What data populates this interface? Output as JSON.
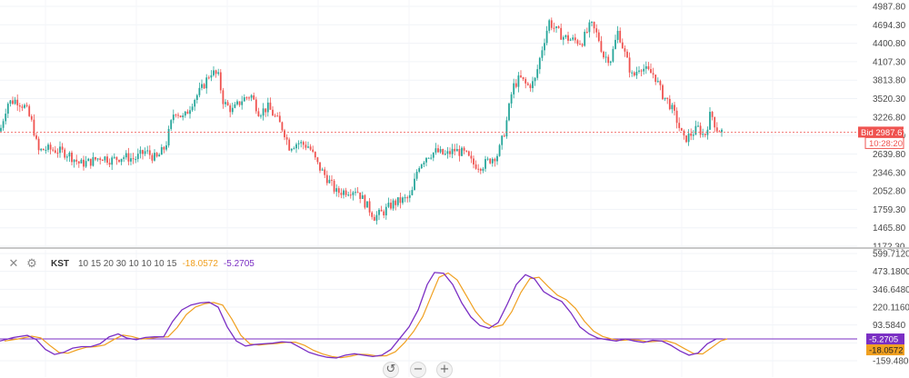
{
  "chart_data": [
    {
      "type": "candlestick",
      "title": "",
      "ylim": [
        1172.3,
        4987.8
      ],
      "yticks": [
        "4987.80",
        "4694.30",
        "4400.80",
        "4107.30",
        "3813.80",
        "3520.30",
        "3226.80",
        "2933.30",
        "2639.80",
        "2346.30",
        "2052.80",
        "1759.30",
        "1465.80",
        "1172.30"
      ],
      "colors": {
        "up": "#26a69a",
        "down": "#ef5350"
      },
      "bid": {
        "label": "Bid",
        "value": "2987.67",
        "countdown": "10:28:20",
        "color": "#ef5350"
      },
      "close_path": [
        [
          0,
          3000
        ],
        [
          8,
          3450
        ],
        [
          18,
          3500
        ],
        [
          28,
          3380
        ],
        [
          36,
          3100
        ],
        [
          42,
          2680
        ],
        [
          50,
          2720
        ],
        [
          62,
          2700
        ],
        [
          75,
          2640
        ],
        [
          88,
          2480
        ],
        [
          100,
          2520
        ],
        [
          112,
          2600
        ],
        [
          122,
          2540
        ],
        [
          135,
          2600
        ],
        [
          148,
          2560
        ],
        [
          160,
          2680
        ],
        [
          172,
          2560
        ],
        [
          182,
          2760
        ],
        [
          192,
          3350
        ],
        [
          202,
          3200
        ],
        [
          212,
          3480
        ],
        [
          222,
          3680
        ],
        [
          232,
          3950
        ],
        [
          240,
          3880
        ],
        [
          246,
          3450
        ],
        [
          256,
          3330
        ],
        [
          266,
          3500
        ],
        [
          276,
          3580
        ],
        [
          285,
          3300
        ],
        [
          295,
          3380
        ],
        [
          305,
          3180
        ],
        [
          312,
          3020
        ],
        [
          318,
          2760
        ],
        [
          328,
          2820
        ],
        [
          340,
          2760
        ],
        [
          350,
          2450
        ],
        [
          360,
          2250
        ],
        [
          370,
          2030
        ],
        [
          380,
          2050
        ],
        [
          392,
          2080
        ],
        [
          402,
          1850
        ],
        [
          412,
          1640
        ],
        [
          422,
          1720
        ],
        [
          432,
          1850
        ],
        [
          442,
          1900
        ],
        [
          452,
          1950
        ],
        [
          460,
          2450
        ],
        [
          470,
          2620
        ],
        [
          480,
          2680
        ],
        [
          490,
          2620
        ],
        [
          500,
          2700
        ],
        [
          512,
          2640
        ],
        [
          520,
          2480
        ],
        [
          530,
          2450
        ],
        [
          540,
          2560
        ],
        [
          548,
          2640
        ],
        [
          556,
          3050
        ],
        [
          564,
          3700
        ],
        [
          572,
          3850
        ],
        [
          580,
          3720
        ],
        [
          588,
          3780
        ],
        [
          596,
          4300
        ],
        [
          604,
          4750
        ],
        [
          612,
          4600
        ],
        [
          620,
          4500
        ],
        [
          630,
          4450
        ],
        [
          640,
          4420
        ],
        [
          650,
          4700
        ],
        [
          658,
          4500
        ],
        [
          664,
          4200
        ],
        [
          672,
          4150
        ],
        [
          680,
          4600
        ],
        [
          688,
          4200
        ],
        [
          696,
          3850
        ],
        [
          704,
          4050
        ],
        [
          712,
          3950
        ],
        [
          720,
          3900
        ],
        [
          728,
          3600
        ],
        [
          736,
          3450
        ],
        [
          744,
          3200
        ],
        [
          752,
          2860
        ],
        [
          760,
          2950
        ],
        [
          768,
          3050
        ],
        [
          775,
          2920
        ],
        [
          782,
          3300
        ],
        [
          788,
          3050
        ],
        [
          795,
          2987.67
        ]
      ]
    },
    {
      "type": "line",
      "name": "KST",
      "params": "10 15 20 30 10 10 10 15",
      "ylim": [
        -159.48,
        599.712
      ],
      "yticks": [
        "599.7120",
        "473.1800",
        "346.6480",
        "220.1160",
        "93.5840",
        "-33.0000",
        "-159.4800"
      ],
      "series": [
        {
          "name": "KST",
          "color": "#7b2fc4",
          "last": "-5.2705"
        },
        {
          "name": "Signal",
          "color": "#f0a020",
          "last": "-18.0572"
        }
      ],
      "zero_line_value": -5.2705,
      "kst_points": [
        [
          0,
          -20
        ],
        [
          15,
          5
        ],
        [
          30,
          20
        ],
        [
          40,
          -10
        ],
        [
          50,
          -80
        ],
        [
          60,
          -115
        ],
        [
          70,
          -100
        ],
        [
          80,
          -70
        ],
        [
          90,
          -60
        ],
        [
          100,
          -60
        ],
        [
          110,
          -40
        ],
        [
          120,
          10
        ],
        [
          130,
          30
        ],
        [
          140,
          0
        ],
        [
          150,
          -10
        ],
        [
          160,
          5
        ],
        [
          170,
          10
        ],
        [
          180,
          10
        ],
        [
          190,
          120
        ],
        [
          200,
          200
        ],
        [
          210,
          235
        ],
        [
          220,
          250
        ],
        [
          230,
          255
        ],
        [
          240,
          220
        ],
        [
          250,
          80
        ],
        [
          260,
          -20
        ],
        [
          270,
          -55
        ],
        [
          280,
          -45
        ],
        [
          290,
          -40
        ],
        [
          300,
          -35
        ],
        [
          310,
          -25
        ],
        [
          320,
          -30
        ],
        [
          330,
          -65
        ],
        [
          340,
          -100
        ],
        [
          350,
          -120
        ],
        [
          360,
          -135
        ],
        [
          370,
          -140
        ],
        [
          380,
          -120
        ],
        [
          390,
          -110
        ],
        [
          400,
          -120
        ],
        [
          410,
          -130
        ],
        [
          420,
          -120
        ],
        [
          430,
          -80
        ],
        [
          440,
          0
        ],
        [
          450,
          80
        ],
        [
          460,
          200
        ],
        [
          470,
          380
        ],
        [
          478,
          465
        ],
        [
          488,
          460
        ],
        [
          498,
          380
        ],
        [
          508,
          250
        ],
        [
          518,
          150
        ],
        [
          528,
          90
        ],
        [
          538,
          70
        ],
        [
          548,
          110
        ],
        [
          558,
          240
        ],
        [
          568,
          380
        ],
        [
          578,
          450
        ],
        [
          588,
          420
        ],
        [
          598,
          330
        ],
        [
          608,
          290
        ],
        [
          618,
          260
        ],
        [
          628,
          180
        ],
        [
          638,
          80
        ],
        [
          648,
          30
        ],
        [
          658,
          0
        ],
        [
          668,
          -10
        ],
        [
          678,
          -20
        ],
        [
          688,
          -5
        ],
        [
          698,
          -20
        ],
        [
          708,
          -30
        ],
        [
          718,
          -15
        ],
        [
          728,
          -20
        ],
        [
          738,
          -50
        ],
        [
          748,
          -90
        ],
        [
          758,
          -120
        ],
        [
          768,
          -105
        ],
        [
          778,
          -40
        ],
        [
          788,
          -5
        ],
        [
          795,
          -5.27
        ]
      ]
    }
  ],
  "legend": {
    "name": "KST",
    "params": "10 15 20 30 10 10 10 15",
    "value1": "-18.0572",
    "value2": "-5.2705"
  },
  "toolbar": {
    "close_icon": "close-icon",
    "settings_icon": "gear-icon"
  },
  "nav": {
    "reset_icon": "reset-icon",
    "zoom_out_icon": "minus-icon",
    "zoom_in_icon": "plus-icon"
  }
}
